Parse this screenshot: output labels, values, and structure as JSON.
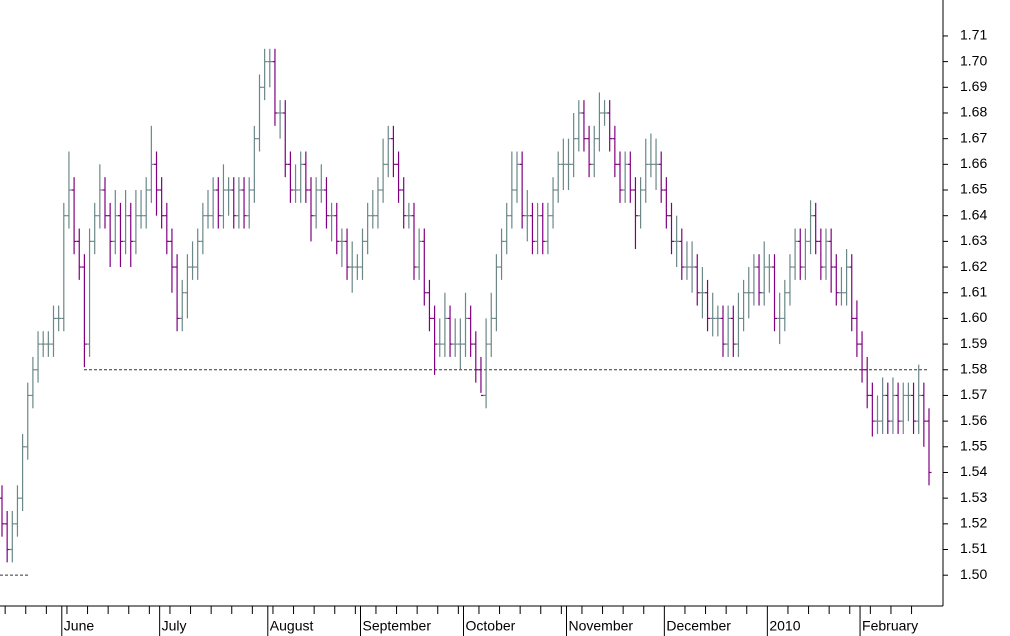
{
  "chart_data": {
    "type": "ohlc",
    "categories": [
      null,
      null,
      null,
      null,
      null,
      null,
      null,
      null,
      null,
      null,
      null,
      null,
      "June",
      null,
      null,
      null,
      null,
      null,
      null,
      null,
      null,
      null,
      null,
      null,
      null,
      null,
      null,
      null,
      null,
      null,
      null,
      "July",
      null,
      null,
      null,
      null,
      null,
      null,
      null,
      null,
      null,
      null,
      null,
      null,
      null,
      null,
      null,
      null,
      null,
      null,
      null,
      null,
      "August",
      null,
      null,
      null,
      null,
      null,
      null,
      null,
      null,
      null,
      null,
      null,
      null,
      null,
      null,
      null,
      null,
      null,
      "September",
      null,
      null,
      null,
      null,
      null,
      null,
      null,
      null,
      null,
      null,
      null,
      null,
      null,
      null,
      null,
      null,
      null,
      null,
      null,
      "October",
      null,
      null,
      null,
      null,
      null,
      null,
      null,
      null,
      null,
      null,
      null,
      null,
      null,
      null,
      null,
      null,
      null,
      null,
      null,
      "November",
      null,
      null,
      null,
      null,
      null,
      null,
      null,
      null,
      null,
      null,
      null,
      null,
      null,
      null,
      null,
      null,
      null,
      null,
      "December",
      null,
      null,
      null,
      null,
      null,
      null,
      null,
      null,
      null,
      null,
      null,
      null,
      null,
      null,
      null,
      null,
      null,
      null,
      null,
      "2010",
      null,
      null,
      null,
      null,
      null,
      null,
      null,
      null,
      null,
      null,
      null,
      null,
      null,
      null,
      null,
      null,
      null,
      "February",
      null,
      null,
      null,
      null,
      null,
      null,
      null,
      null,
      null,
      null,
      null,
      null,
      null
    ],
    "open": [
      1.53,
      1.52,
      1.51,
      1.52,
      1.53,
      1.55,
      1.57,
      1.58,
      1.59,
      1.59,
      1.59,
      1.6,
      1.6,
      1.64,
      1.65,
      1.63,
      1.62,
      1.59,
      1.63,
      1.64,
      1.65,
      1.64,
      1.63,
      1.64,
      1.63,
      1.64,
      1.63,
      1.64,
      1.64,
      1.65,
      1.66,
      1.65,
      1.64,
      1.63,
      1.62,
      1.6,
      1.61,
      1.62,
      1.62,
      1.63,
      1.64,
      1.64,
      1.65,
      1.64,
      1.65,
      1.65,
      1.64,
      1.65,
      1.64,
      1.65,
      1.67,
      1.69,
      1.7,
      1.7,
      1.68,
      1.68,
      1.66,
      1.65,
      1.65,
      1.66,
      1.65,
      1.64,
      1.65,
      1.65,
      1.64,
      1.64,
      1.63,
      1.63,
      1.62,
      1.62,
      1.62,
      1.63,
      1.64,
      1.64,
      1.65,
      1.66,
      1.67,
      1.66,
      1.65,
      1.64,
      1.64,
      1.62,
      1.63,
      1.61,
      1.6,
      1.59,
      1.59,
      1.6,
      1.59,
      1.59,
      1.59,
      1.6,
      1.59,
      1.58,
      1.57,
      1.59,
      1.6,
      1.62,
      1.63,
      1.64,
      1.65,
      1.66,
      1.64,
      1.64,
      1.63,
      1.64,
      1.63,
      1.64,
      1.65,
      1.66,
      1.66,
      1.66,
      1.67,
      1.68,
      1.67,
      1.66,
      1.67,
      1.68,
      1.68,
      1.67,
      1.66,
      1.65,
      1.66,
      1.65,
      1.64,
      1.65,
      1.66,
      1.66,
      1.66,
      1.65,
      1.64,
      1.63,
      1.63,
      1.62,
      1.62,
      1.62,
      1.61,
      1.61,
      1.6,
      1.6,
      1.6,
      1.59,
      1.6,
      1.59,
      1.6,
      1.61,
      1.61,
      1.62,
      1.61,
      1.62,
      1.62,
      1.6,
      1.6,
      1.61,
      1.62,
      1.63,
      1.62,
      1.63,
      1.64,
      1.63,
      1.62,
      1.63,
      1.62,
      1.61,
      1.61,
      1.62,
      1.6,
      1.59,
      1.58,
      1.57,
      1.56,
      1.56,
      1.57,
      1.56,
      1.57,
      1.56,
      1.57,
      1.57,
      1.56,
      1.57,
      1.56
    ],
    "high": [
      1.535,
      1.525,
      1.525,
      1.535,
      1.555,
      1.575,
      1.585,
      1.595,
      1.595,
      1.595,
      1.605,
      1.605,
      1.645,
      1.665,
      1.655,
      1.635,
      1.625,
      1.635,
      1.645,
      1.66,
      1.655,
      1.645,
      1.65,
      1.645,
      1.65,
      1.645,
      1.65,
      1.65,
      1.655,
      1.675,
      1.665,
      1.655,
      1.645,
      1.635,
      1.625,
      1.615,
      1.625,
      1.63,
      1.635,
      1.645,
      1.65,
      1.655,
      1.655,
      1.66,
      1.655,
      1.655,
      1.655,
      1.655,
      1.655,
      1.675,
      1.695,
      1.705,
      1.705,
      1.705,
      1.685,
      1.685,
      1.665,
      1.66,
      1.665,
      1.665,
      1.655,
      1.655,
      1.66,
      1.655,
      1.645,
      1.645,
      1.635,
      1.635,
      1.63,
      1.625,
      1.635,
      1.645,
      1.65,
      1.655,
      1.67,
      1.675,
      1.675,
      1.665,
      1.655,
      1.645,
      1.645,
      1.635,
      1.635,
      1.615,
      1.605,
      1.6,
      1.61,
      1.605,
      1.6,
      1.6,
      1.61,
      1.605,
      1.595,
      1.585,
      1.6,
      1.61,
      1.625,
      1.635,
      1.645,
      1.665,
      1.665,
      1.665,
      1.65,
      1.645,
      1.645,
      1.645,
      1.645,
      1.655,
      1.665,
      1.67,
      1.67,
      1.68,
      1.685,
      1.685,
      1.675,
      1.675,
      1.688,
      1.685,
      1.685,
      1.675,
      1.665,
      1.665,
      1.665,
      1.655,
      1.655,
      1.67,
      1.672,
      1.67,
      1.665,
      1.655,
      1.645,
      1.64,
      1.635,
      1.63,
      1.63,
      1.625,
      1.62,
      1.615,
      1.61,
      1.605,
      1.605,
      1.605,
      1.605,
      1.61,
      1.615,
      1.62,
      1.625,
      1.625,
      1.63,
      1.625,
      1.625,
      1.61,
      1.615,
      1.625,
      1.635,
      1.635,
      1.635,
      1.646,
      1.645,
      1.635,
      1.635,
      1.635,
      1.625,
      1.62,
      1.627,
      1.625,
      1.607,
      1.595,
      1.585,
      1.575,
      1.57,
      1.577,
      1.575,
      1.577,
      1.575,
      1.575,
      1.575,
      1.575,
      1.582,
      1.575,
      1.565
    ],
    "low": [
      1.515,
      1.505,
      1.505,
      1.515,
      1.525,
      1.545,
      1.565,
      1.575,
      1.585,
      1.585,
      1.585,
      1.595,
      1.595,
      1.635,
      1.625,
      1.615,
      1.581,
      1.585,
      1.625,
      1.635,
      1.635,
      1.62,
      1.625,
      1.62,
      1.625,
      1.62,
      1.625,
      1.635,
      1.635,
      1.645,
      1.64,
      1.635,
      1.625,
      1.61,
      1.595,
      1.595,
      1.6,
      1.615,
      1.615,
      1.625,
      1.635,
      1.635,
      1.635,
      1.635,
      1.64,
      1.635,
      1.635,
      1.635,
      1.635,
      1.645,
      1.665,
      1.685,
      1.69,
      1.675,
      1.67,
      1.655,
      1.645,
      1.645,
      1.645,
      1.645,
      1.63,
      1.635,
      1.645,
      1.635,
      1.63,
      1.625,
      1.62,
      1.615,
      1.61,
      1.615,
      1.615,
      1.625,
      1.635,
      1.635,
      1.645,
      1.655,
      1.655,
      1.645,
      1.635,
      1.635,
      1.615,
      1.615,
      1.605,
      1.595,
      1.578,
      1.585,
      1.585,
      1.585,
      1.585,
      1.58,
      1.585,
      1.585,
      1.575,
      1.571,
      1.565,
      1.585,
      1.595,
      1.615,
      1.625,
      1.635,
      1.645,
      1.635,
      1.63,
      1.625,
      1.625,
      1.625,
      1.625,
      1.635,
      1.645,
      1.65,
      1.65,
      1.655,
      1.665,
      1.665,
      1.655,
      1.655,
      1.665,
      1.675,
      1.665,
      1.655,
      1.645,
      1.645,
      1.645,
      1.627,
      1.635,
      1.645,
      1.655,
      1.65,
      1.645,
      1.635,
      1.625,
      1.62,
      1.615,
      1.615,
      1.61,
      1.605,
      1.6,
      1.595,
      1.593,
      1.593,
      1.585,
      1.585,
      1.585,
      1.585,
      1.595,
      1.6,
      1.605,
      1.605,
      1.605,
      1.61,
      1.595,
      1.59,
      1.595,
      1.605,
      1.615,
      1.615,
      1.615,
      1.625,
      1.625,
      1.615,
      1.615,
      1.61,
      1.605,
      1.605,
      1.605,
      1.595,
      1.585,
      1.575,
      1.565,
      1.554,
      1.555,
      1.555,
      1.555,
      1.555,
      1.555,
      1.555,
      1.56,
      1.555,
      1.555,
      1.55,
      1.535
    ],
    "close": [
      1.52,
      1.51,
      1.52,
      1.53,
      1.55,
      1.57,
      1.58,
      1.59,
      1.59,
      1.59,
      1.6,
      1.6,
      1.64,
      1.65,
      1.63,
      1.62,
      1.59,
      1.63,
      1.64,
      1.65,
      1.64,
      1.63,
      1.64,
      1.63,
      1.64,
      1.63,
      1.64,
      1.64,
      1.65,
      1.66,
      1.65,
      1.64,
      1.63,
      1.62,
      1.6,
      1.61,
      1.62,
      1.62,
      1.63,
      1.64,
      1.64,
      1.65,
      1.64,
      1.65,
      1.65,
      1.64,
      1.65,
      1.64,
      1.65,
      1.67,
      1.69,
      1.7,
      1.7,
      1.68,
      1.68,
      1.66,
      1.65,
      1.65,
      1.66,
      1.65,
      1.64,
      1.65,
      1.65,
      1.64,
      1.64,
      1.63,
      1.63,
      1.62,
      1.62,
      1.62,
      1.63,
      1.64,
      1.64,
      1.65,
      1.66,
      1.67,
      1.66,
      1.65,
      1.64,
      1.64,
      1.62,
      1.63,
      1.61,
      1.6,
      1.59,
      1.59,
      1.6,
      1.59,
      1.59,
      1.59,
      1.6,
      1.59,
      1.58,
      1.57,
      1.59,
      1.6,
      1.62,
      1.63,
      1.64,
      1.65,
      1.66,
      1.64,
      1.64,
      1.63,
      1.64,
      1.63,
      1.64,
      1.65,
      1.66,
      1.66,
      1.66,
      1.67,
      1.68,
      1.67,
      1.66,
      1.67,
      1.68,
      1.68,
      1.67,
      1.66,
      1.65,
      1.66,
      1.65,
      1.64,
      1.65,
      1.66,
      1.66,
      1.66,
      1.65,
      1.64,
      1.63,
      1.63,
      1.62,
      1.62,
      1.62,
      1.61,
      1.61,
      1.6,
      1.6,
      1.6,
      1.59,
      1.6,
      1.59,
      1.6,
      1.61,
      1.61,
      1.62,
      1.61,
      1.62,
      1.62,
      1.6,
      1.6,
      1.61,
      1.62,
      1.63,
      1.62,
      1.63,
      1.64,
      1.63,
      1.62,
      1.63,
      1.62,
      1.61,
      1.61,
      1.62,
      1.6,
      1.59,
      1.58,
      1.57,
      1.56,
      1.56,
      1.57,
      1.56,
      1.57,
      1.56,
      1.57,
      1.57,
      1.56,
      1.57,
      1.56,
      1.54
    ],
    "up_color": "#6b8787",
    "down_color": "#800080",
    "reference_lines": [
      1.58,
      1.5
    ],
    "ylim": [
      1.488,
      1.724
    ],
    "yticks": [
      {
        "value": 1.5,
        "label": "1.50"
      },
      1.51,
      1.52,
      1.53,
      1.54,
      1.55,
      1.56,
      1.57,
      1.58,
      1.59,
      {
        "value": 1.6,
        "label": "1.60"
      },
      1.61,
      1.62,
      1.63,
      1.64,
      1.65,
      1.66,
      1.67,
      1.68,
      1.69,
      {
        "value": 1.7,
        "label": "1.70"
      },
      1.71
    ]
  }
}
